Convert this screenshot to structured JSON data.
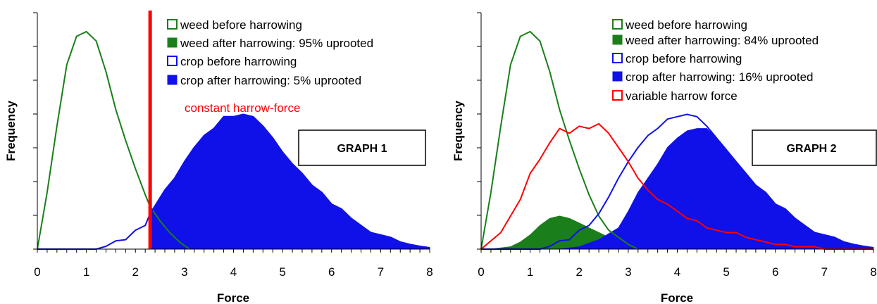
{
  "colors": {
    "weed": "#1a7f1a",
    "crop": "#1010e8",
    "harrow": "#ff0000",
    "axis": "#000000",
    "background": "#ffffff"
  },
  "chart_data": [
    {
      "id": "graph1",
      "type": "area",
      "box_label": "GRAPH 1",
      "xlabel": "Force",
      "ylabel": "Frequency",
      "xlim": [
        0,
        8
      ],
      "ylim": [
        0,
        1
      ],
      "x_ticks": [
        "0",
        "1",
        "2",
        "3",
        "4",
        "5",
        "6",
        "7",
        "8"
      ],
      "legend_position": "top-right",
      "series": [
        {
          "name": "weed before harrowing",
          "style": "outline",
          "color": "#1a7f1a",
          "points": [
            [
              0,
              0
            ],
            [
              0.2,
              0.24
            ],
            [
              0.4,
              0.52
            ],
            [
              0.6,
              0.78
            ],
            [
              0.8,
              0.9
            ],
            [
              1.0,
              0.92
            ],
            [
              1.2,
              0.88
            ],
            [
              1.4,
              0.75
            ],
            [
              1.6,
              0.59
            ],
            [
              1.8,
              0.46
            ],
            [
              2.0,
              0.34
            ],
            [
              2.2,
              0.23
            ],
            [
              2.3,
              0.18
            ],
            [
              2.5,
              0.12
            ],
            [
              2.7,
              0.07
            ],
            [
              2.9,
              0.03
            ],
            [
              3.1,
              0.0
            ]
          ]
        },
        {
          "name": "weed after harrowing: 95% uprooted",
          "style": "filled",
          "color": "#1a7f1a",
          "points": []
        },
        {
          "name": "crop before harrowing",
          "style": "outline",
          "color": "#1010e8",
          "points": [
            [
              0,
              0
            ],
            [
              1.2,
              0
            ],
            [
              1.4,
              0.012
            ],
            [
              1.6,
              0.035
            ],
            [
              1.8,
              0.04
            ],
            [
              2.0,
              0.08
            ],
            [
              2.2,
              0.1
            ],
            [
              2.3,
              0.15
            ],
            [
              2.6,
              0.25
            ],
            [
              2.8,
              0.3
            ],
            [
              3.0,
              0.37
            ],
            [
              3.2,
              0.43
            ],
            [
              3.4,
              0.48
            ],
            [
              3.6,
              0.51
            ],
            [
              3.8,
              0.56
            ],
            [
              4.0,
              0.56
            ],
            [
              4.2,
              0.57
            ],
            [
              4.4,
              0.56
            ],
            [
              4.6,
              0.52
            ],
            [
              4.8,
              0.47
            ],
            [
              5.0,
              0.41
            ],
            [
              5.2,
              0.36
            ],
            [
              5.4,
              0.32
            ],
            [
              5.6,
              0.27
            ],
            [
              5.8,
              0.24
            ],
            [
              6.0,
              0.19
            ],
            [
              6.2,
              0.17
            ],
            [
              6.4,
              0.13
            ],
            [
              6.6,
              0.1
            ],
            [
              6.8,
              0.07
            ],
            [
              7.0,
              0.06
            ],
            [
              7.2,
              0.05
            ],
            [
              7.4,
              0.03
            ],
            [
              7.6,
              0.02
            ],
            [
              7.8,
              0.012
            ],
            [
              8.0,
              0.006
            ]
          ]
        },
        {
          "name": "crop after harrowing: 5% uprooted",
          "style": "filled",
          "color": "#1010e8",
          "points": [
            [
              2.3,
              0
            ],
            [
              2.3,
              0.15
            ],
            [
              2.6,
              0.25
            ],
            [
              2.8,
              0.3
            ],
            [
              3.0,
              0.37
            ],
            [
              3.2,
              0.43
            ],
            [
              3.4,
              0.48
            ],
            [
              3.6,
              0.51
            ],
            [
              3.8,
              0.56
            ],
            [
              4.0,
              0.56
            ],
            [
              4.2,
              0.57
            ],
            [
              4.4,
              0.56
            ],
            [
              4.6,
              0.52
            ],
            [
              4.8,
              0.47
            ],
            [
              5.0,
              0.41
            ],
            [
              5.2,
              0.36
            ],
            [
              5.4,
              0.32
            ],
            [
              5.6,
              0.27
            ],
            [
              5.8,
              0.24
            ],
            [
              6.0,
              0.19
            ],
            [
              6.2,
              0.17
            ],
            [
              6.4,
              0.13
            ],
            [
              6.6,
              0.1
            ],
            [
              6.8,
              0.07
            ],
            [
              7.0,
              0.06
            ],
            [
              7.2,
              0.05
            ],
            [
              7.4,
              0.03
            ],
            [
              7.6,
              0.02
            ],
            [
              7.8,
              0.012
            ],
            [
              8.0,
              0.006
            ],
            [
              8.0,
              0
            ]
          ]
        }
      ],
      "harrow_force": {
        "label": "constant harrow-force",
        "x": 2.3
      }
    },
    {
      "id": "graph2",
      "type": "area",
      "box_label": "GRAPH 2",
      "xlabel": "Force",
      "ylabel": "Frequency",
      "xlim": [
        0,
        8
      ],
      "ylim": [
        0,
        1
      ],
      "x_ticks": [
        "0",
        "1",
        "2",
        "3",
        "4",
        "5",
        "6",
        "7",
        "8"
      ],
      "legend_position": "top-right",
      "series": [
        {
          "name": "weed before harrowing",
          "style": "outline",
          "color": "#1a7f1a",
          "points": [
            [
              0,
              0
            ],
            [
              0.2,
              0.24
            ],
            [
              0.4,
              0.52
            ],
            [
              0.6,
              0.78
            ],
            [
              0.8,
              0.9
            ],
            [
              1.0,
              0.92
            ],
            [
              1.2,
              0.88
            ],
            [
              1.4,
              0.75
            ],
            [
              1.6,
              0.59
            ],
            [
              1.8,
              0.46
            ],
            [
              2.0,
              0.34
            ],
            [
              2.2,
              0.23
            ],
            [
              2.4,
              0.14
            ],
            [
              2.6,
              0.08
            ],
            [
              2.8,
              0.05
            ],
            [
              3.0,
              0.02
            ],
            [
              3.2,
              0.0
            ]
          ]
        },
        {
          "name": "weed after harrowing: 84% uprooted",
          "style": "filled",
          "color": "#1a7f1a",
          "points": [
            [
              0.2,
              0
            ],
            [
              0.6,
              0.01
            ],
            [
              0.8,
              0.03
            ],
            [
              1.0,
              0.06
            ],
            [
              1.2,
              0.1
            ],
            [
              1.4,
              0.13
            ],
            [
              1.6,
              0.14
            ],
            [
              1.8,
              0.13
            ],
            [
              2.0,
              0.11
            ],
            [
              2.2,
              0.09
            ],
            [
              2.4,
              0.07
            ],
            [
              2.6,
              0.05
            ],
            [
              2.8,
              0.03
            ],
            [
              3.0,
              0.01
            ],
            [
              3.2,
              0
            ]
          ]
        },
        {
          "name": "crop before harrowing",
          "style": "outline",
          "color": "#1010e8",
          "points": [
            [
              0,
              0
            ],
            [
              1.2,
              0
            ],
            [
              1.4,
              0.012
            ],
            [
              1.6,
              0.035
            ],
            [
              1.8,
              0.04
            ],
            [
              2.0,
              0.08
            ],
            [
              2.2,
              0.1
            ],
            [
              2.4,
              0.15
            ],
            [
              2.6,
              0.22
            ],
            [
              2.8,
              0.3
            ],
            [
              3.0,
              0.37
            ],
            [
              3.2,
              0.43
            ],
            [
              3.4,
              0.48
            ],
            [
              3.6,
              0.51
            ],
            [
              3.8,
              0.55
            ],
            [
              4.0,
              0.56
            ],
            [
              4.2,
              0.57
            ],
            [
              4.4,
              0.56
            ],
            [
              4.6,
              0.52
            ],
            [
              4.8,
              0.47
            ],
            [
              5.0,
              0.42
            ],
            [
              5.2,
              0.37
            ],
            [
              5.4,
              0.32
            ],
            [
              5.6,
              0.27
            ],
            [
              5.8,
              0.24
            ],
            [
              6.0,
              0.19
            ],
            [
              6.2,
              0.17
            ],
            [
              6.4,
              0.13
            ],
            [
              6.6,
              0.1
            ],
            [
              6.8,
              0.07
            ],
            [
              7.0,
              0.06
            ],
            [
              7.2,
              0.05
            ],
            [
              7.4,
              0.03
            ],
            [
              7.6,
              0.02
            ],
            [
              7.8,
              0.012
            ],
            [
              8.0,
              0.006
            ]
          ]
        },
        {
          "name": "crop after harrowing: 16% uprooted",
          "style": "filled",
          "color": "#1010e8",
          "points": [
            [
              1.6,
              0
            ],
            [
              2.0,
              0.01
            ],
            [
              2.4,
              0.04
            ],
            [
              2.8,
              0.09
            ],
            [
              3.0,
              0.16
            ],
            [
              3.2,
              0.24
            ],
            [
              3.4,
              0.3
            ],
            [
              3.6,
              0.36
            ],
            [
              3.8,
              0.43
            ],
            [
              4.0,
              0.47
            ],
            [
              4.2,
              0.5
            ],
            [
              4.4,
              0.51
            ],
            [
              4.6,
              0.51
            ],
            [
              4.8,
              0.47
            ],
            [
              5.0,
              0.42
            ],
            [
              5.2,
              0.37
            ],
            [
              5.4,
              0.32
            ],
            [
              5.6,
              0.27
            ],
            [
              5.8,
              0.24
            ],
            [
              6.0,
              0.19
            ],
            [
              6.2,
              0.17
            ],
            [
              6.4,
              0.13
            ],
            [
              6.6,
              0.1
            ],
            [
              6.8,
              0.07
            ],
            [
              7.0,
              0.06
            ],
            [
              7.2,
              0.05
            ],
            [
              7.4,
              0.03
            ],
            [
              7.6,
              0.02
            ],
            [
              7.8,
              0.012
            ],
            [
              8.0,
              0.006
            ],
            [
              8.0,
              0
            ]
          ]
        },
        {
          "name": "variable harrow force",
          "style": "line",
          "color": "#ff0000",
          "points": [
            [
              0,
              0
            ],
            [
              0.4,
              0.07
            ],
            [
              0.8,
              0.21
            ],
            [
              1.0,
              0.32
            ],
            [
              1.2,
              0.38
            ],
            [
              1.4,
              0.45
            ],
            [
              1.6,
              0.51
            ],
            [
              1.8,
              0.49
            ],
            [
              2.0,
              0.52
            ],
            [
              2.2,
              0.51
            ],
            [
              2.4,
              0.53
            ],
            [
              2.6,
              0.49
            ],
            [
              2.8,
              0.43
            ],
            [
              3.0,
              0.37
            ],
            [
              3.2,
              0.3
            ],
            [
              3.4,
              0.25
            ],
            [
              3.6,
              0.21
            ],
            [
              3.8,
              0.19
            ],
            [
              4.0,
              0.16
            ],
            [
              4.2,
              0.13
            ],
            [
              4.4,
              0.12
            ],
            [
              4.6,
              0.09
            ],
            [
              4.8,
              0.08
            ],
            [
              5.0,
              0.07
            ],
            [
              5.2,
              0.07
            ],
            [
              5.4,
              0.05
            ],
            [
              5.6,
              0.04
            ],
            [
              5.8,
              0.03
            ],
            [
              6.0,
              0.02
            ],
            [
              6.2,
              0.02
            ],
            [
              6.4,
              0.01
            ],
            [
              6.6,
              0.01
            ],
            [
              6.8,
              0.01
            ],
            [
              7.0,
              0.0
            ],
            [
              7.4,
              0.0
            ],
            [
              8.0,
              0.0
            ]
          ]
        }
      ]
    }
  ]
}
